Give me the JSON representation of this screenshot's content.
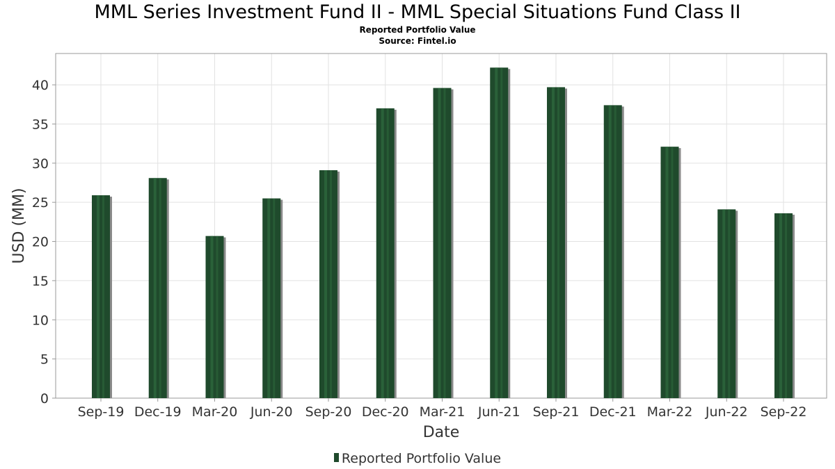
{
  "title": "MML Series Investment Fund II - MML Special Situations Fund Class II",
  "subtitle": "Reported Portfolio Value",
  "source": "Source: Fintel.io",
  "colors": {
    "bar": "#1f4a2c",
    "bar_highlight": "#2f6b3e",
    "bar_shadow": "#8a8a8a",
    "grid": "#e2e2e2",
    "axis": "#999999"
  },
  "chart_data": {
    "type": "bar",
    "title": "MML Series Investment Fund II - MML Special Situations Fund Class II",
    "subtitle": "Reported Portfolio Value",
    "xlabel": "Date",
    "ylabel": "USD (MM)",
    "ylim": [
      0,
      44
    ],
    "yticks": [
      0,
      5,
      10,
      15,
      20,
      25,
      30,
      35,
      40
    ],
    "grid": true,
    "legend_position": "bottom-center",
    "categories": [
      "Sep-19",
      "Dec-19",
      "Mar-20",
      "Jun-20",
      "Sep-20",
      "Dec-20",
      "Mar-21",
      "Jun-21",
      "Sep-21",
      "Dec-21",
      "Mar-22",
      "Jun-22",
      "Sep-22"
    ],
    "series": [
      {
        "name": "Reported Portfolio Value",
        "values": [
          25.9,
          28.1,
          20.7,
          25.5,
          29.1,
          37.0,
          39.6,
          42.2,
          39.7,
          37.4,
          32.1,
          24.1,
          23.6
        ]
      }
    ]
  }
}
